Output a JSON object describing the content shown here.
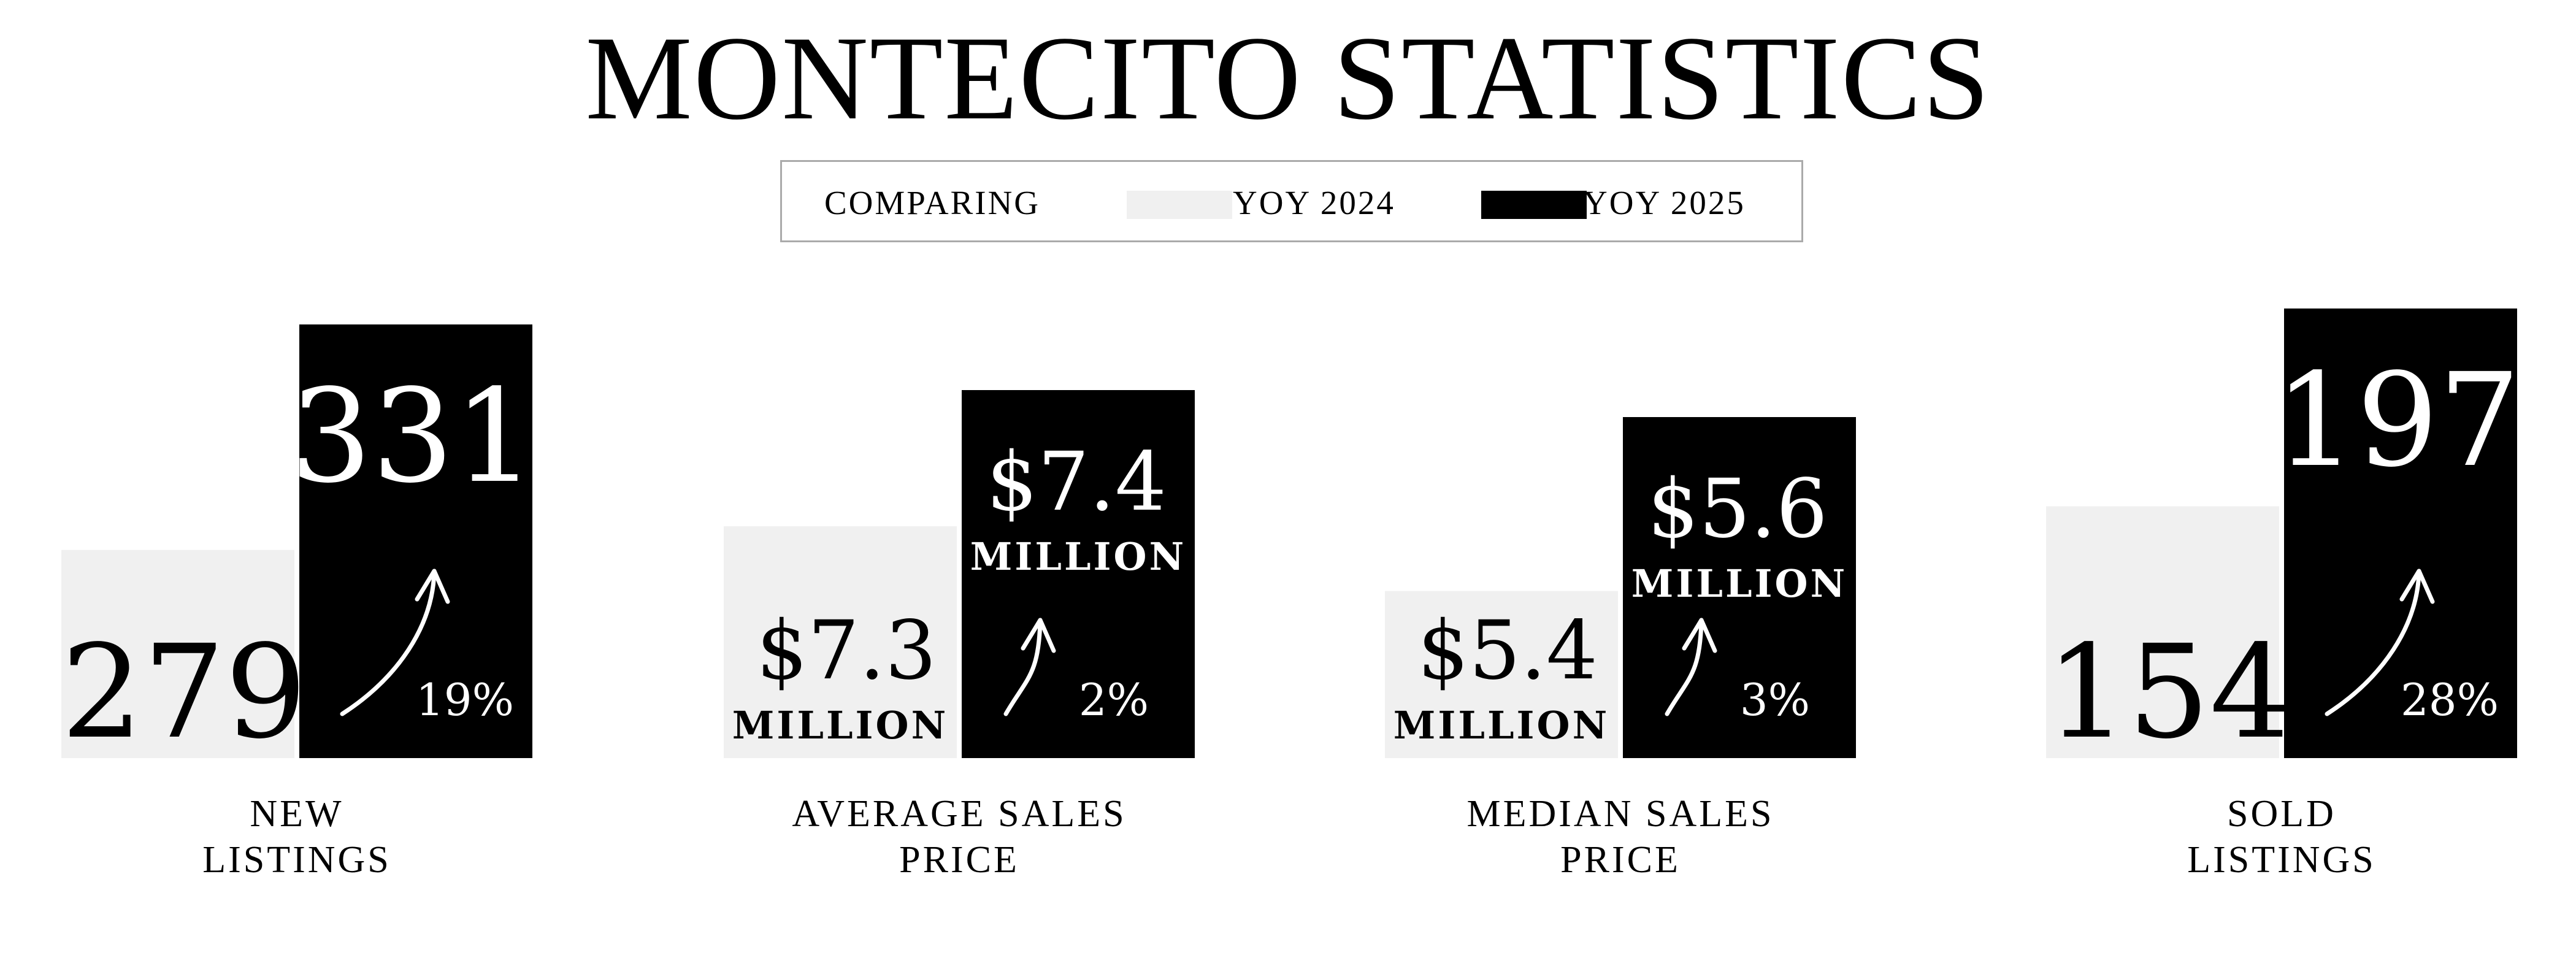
{
  "title": "MONTECITO STATISTICS",
  "legend": {
    "prefix": "COMPARING",
    "items": [
      {
        "label": "YOY 2024",
        "color": "#f0f0f0"
      },
      {
        "label": "YOY 2025",
        "color": "#000000"
      }
    ]
  },
  "colors": {
    "bar_2024": "#f0f0f0",
    "bar_2025": "#000000",
    "text_on_dark": "#ffffff",
    "text_on_light": "#000000"
  },
  "chart_data": {
    "type": "bar",
    "title": "MONTECITO STATISTICS",
    "series": [
      {
        "name": "YOY 2024"
      },
      {
        "name": "YOY 2025"
      }
    ],
    "groups": [
      {
        "category_lines": [
          "NEW",
          "LISTINGS"
        ],
        "v2024": 279,
        "v2025": 331,
        "label2024": "279",
        "label2025": "331",
        "unit2024": "",
        "unit2025": "",
        "change": "19%"
      },
      {
        "category_lines": [
          "AVERAGE SALES",
          "PRICE"
        ],
        "v2024": 7.3,
        "v2025": 7.4,
        "label2024": "$7.3",
        "label2025": "$7.4",
        "unit2024": "MILLION",
        "unit2025": "MILLION",
        "change": "2%"
      },
      {
        "category_lines": [
          "MEDIAN SALES",
          "PRICE"
        ],
        "v2024": 5.4,
        "v2025": 5.6,
        "label2024": "$5.4",
        "label2025": "$5.6",
        "unit2024": "MILLION",
        "unit2025": "MILLION",
        "change": "3%"
      },
      {
        "category_lines": [
          "SOLD",
          "LISTINGS"
        ],
        "v2024": 154,
        "v2025": 197,
        "label2024": "154",
        "label2025": "197",
        "unit2024": "",
        "unit2025": "",
        "change": "28%"
      }
    ]
  }
}
